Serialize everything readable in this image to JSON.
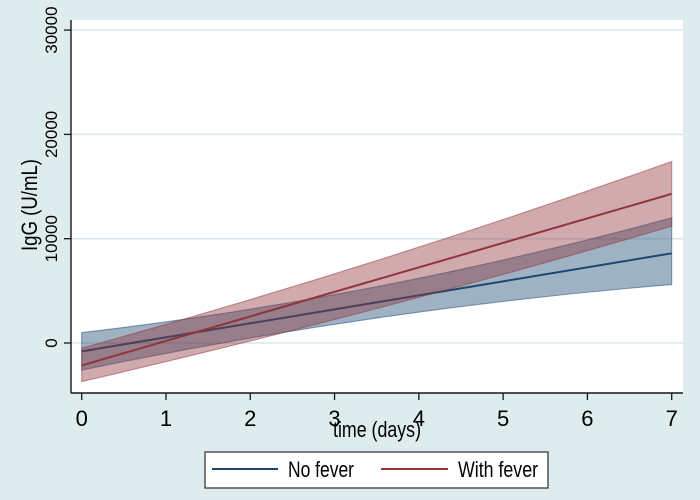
{
  "figure": {
    "background_color": "#dfecee",
    "plot_background_color": "#ffffff",
    "grid_color": "#dbe6ec",
    "axis_color": "#161616",
    "text_color": "#000000",
    "legend_border_color": "#2a2a2a"
  },
  "chart_data": {
    "type": "line",
    "title": "",
    "xlabel": "time (days)",
    "ylabel": "IgG (U/mL)",
    "xlim": [
      0,
      7
    ],
    "ylim": [
      -4800,
      31000
    ],
    "xticks": [
      0,
      1,
      2,
      3,
      4,
      5,
      6,
      7
    ],
    "yticks": [
      0,
      10000,
      20000,
      30000
    ],
    "grid": "horizontal-only",
    "legend_position": "bottom-center",
    "series": [
      {
        "name": "No fever",
        "color": "#1a476f",
        "band_opacity": 0.42,
        "fit_x": [
          0,
          7
        ],
        "fit_y": [
          -800,
          8600
        ],
        "ci_x": [
          0,
          3.5,
          7
        ],
        "ci_upper": [
          1000,
          5400,
          12000
        ],
        "ci_lower": [
          -2600,
          2400,
          5600
        ]
      },
      {
        "name": "With fever",
        "color": "#90353b",
        "band_opacity": 0.42,
        "fit_x": [
          0,
          7
        ],
        "fit_y": [
          -2150,
          14300
        ],
        "ci_x": [
          0,
          3.5,
          7
        ],
        "ci_upper": [
          -500,
          7900,
          17400
        ],
        "ci_lower": [
          -3700,
          3300,
          11200
        ]
      }
    ]
  }
}
